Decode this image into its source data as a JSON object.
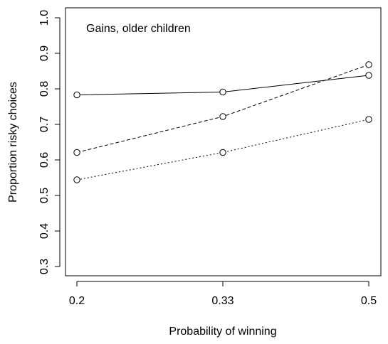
{
  "chart_data": {
    "type": "line",
    "title": "Gains, older children",
    "xlabel": "Probability of winning",
    "ylabel": "Proportion risky choices",
    "x": [
      0.2,
      0.33,
      0.5
    ],
    "x_tick_labels": [
      "0.2",
      "0.33",
      "0.5"
    ],
    "y_ticks": [
      0.3,
      0.4,
      0.5,
      0.6,
      0.7,
      0.8,
      0.9,
      1.0
    ],
    "y_tick_labels": [
      "0.3",
      "0.4",
      "0.5",
      "0.6",
      "0.7",
      "0.8",
      "0.9",
      "1.0"
    ],
    "ylim": [
      0.28,
      1.03
    ],
    "grid": false,
    "legend": "none",
    "series": [
      {
        "values": [
          0.783,
          0.791,
          0.838
        ],
        "line_style": "solid",
        "marker": "open-circle"
      },
      {
        "values": [
          0.621,
          0.722,
          0.868
        ],
        "line_style": "dashed",
        "marker": "open-circle"
      },
      {
        "values": [
          0.544,
          0.621,
          0.714
        ],
        "line_style": "dotted",
        "marker": "open-circle"
      }
    ]
  }
}
